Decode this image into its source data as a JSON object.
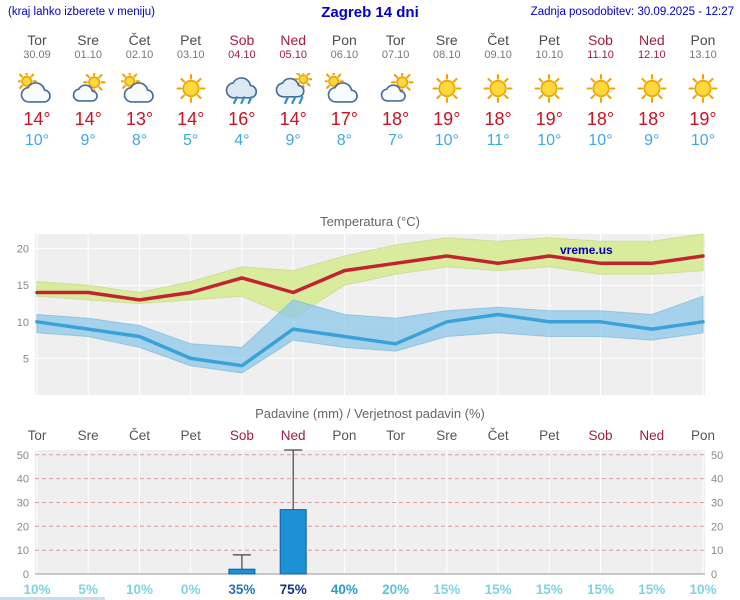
{
  "header": {
    "left_note": "(kraj lahko izberete v meniju)",
    "title": "Zagreb 14 dni",
    "updated": "Zadnja posodobitev: 30.09.2025 - 12:27"
  },
  "days": [
    {
      "name": "Tor",
      "date": "30.09",
      "weekend": false,
      "icon": "mostly-cloudy",
      "tmax_label": "14°",
      "tmin_label": "10°"
    },
    {
      "name": "Sre",
      "date": "01.10",
      "weekend": false,
      "icon": "partly",
      "tmax_label": "14°",
      "tmin_label": "9°"
    },
    {
      "name": "Čet",
      "date": "02.10",
      "weekend": false,
      "icon": "mostly-cloudy",
      "tmax_label": "13°",
      "tmin_label": "8°"
    },
    {
      "name": "Pet",
      "date": "03.10",
      "weekend": false,
      "icon": "sunny",
      "tmax_label": "14°",
      "tmin_label": "5°"
    },
    {
      "name": "Sob",
      "date": "04.10",
      "weekend": true,
      "icon": "rain",
      "tmax_label": "16°",
      "tmin_label": "4°"
    },
    {
      "name": "Ned",
      "date": "05.10",
      "weekend": true,
      "icon": "rain-sun",
      "tmax_label": "14°",
      "tmin_label": "9°"
    },
    {
      "name": "Pon",
      "date": "06.10",
      "weekend": false,
      "icon": "mostly-cloudy",
      "tmax_label": "17°",
      "tmin_label": "8°"
    },
    {
      "name": "Tor",
      "date": "07.10",
      "weekend": false,
      "icon": "partly",
      "tmax_label": "18°",
      "tmin_label": "7°"
    },
    {
      "name": "Sre",
      "date": "08.10",
      "weekend": false,
      "icon": "sunny",
      "tmax_label": "19°",
      "tmin_label": "10°"
    },
    {
      "name": "Čet",
      "date": "09.10",
      "weekend": false,
      "icon": "sunny",
      "tmax_label": "18°",
      "tmin_label": "11°"
    },
    {
      "name": "Pet",
      "date": "10.10",
      "weekend": false,
      "icon": "sunny",
      "tmax_label": "19°",
      "tmin_label": "10°"
    },
    {
      "name": "Sob",
      "date": "11.10",
      "weekend": true,
      "icon": "sunny",
      "tmax_label": "18°",
      "tmin_label": "10°"
    },
    {
      "name": "Ned",
      "date": "12.10",
      "weekend": true,
      "icon": "sunny",
      "tmax_label": "18°",
      "tmin_label": "9°"
    },
    {
      "name": "Pon",
      "date": "13.10",
      "weekend": false,
      "icon": "sunny",
      "tmax_label": "19°",
      "tmin_label": "10°"
    }
  ],
  "chart_data": [
    {
      "type": "line",
      "title": "Temperatura (°C)",
      "x_labels": [
        "Tor",
        "Sre",
        "Čet",
        "Pet",
        "Sob",
        "Ned",
        "Pon",
        "Tor",
        "Sre",
        "Čet",
        "Pet",
        "Sob",
        "Ned",
        "Pon"
      ],
      "ylim": [
        0,
        22
      ],
      "yticks": [
        5,
        10,
        15,
        20
      ],
      "grid": true,
      "watermark": "vreme.us",
      "series": [
        {
          "name": "tmax",
          "color": "#c32330",
          "values": [
            14,
            14,
            13,
            14,
            16,
            14,
            17,
            18,
            19,
            18,
            19,
            18,
            18,
            19
          ]
        },
        {
          "name": "tmin",
          "color": "#3aa2d9",
          "values": [
            10,
            9,
            8,
            5,
            4,
            9,
            8,
            7,
            10,
            11,
            10,
            10,
            9,
            10
          ]
        },
        {
          "name": "tmax_range_upper",
          "values": [
            15.5,
            15,
            14,
            15.5,
            17.5,
            17,
            19,
            20.5,
            21.5,
            21,
            21.5,
            21,
            21,
            22
          ]
        },
        {
          "name": "tmax_range_lower",
          "values": [
            13.5,
            13,
            12.5,
            13,
            13.5,
            10.5,
            15,
            16.5,
            17.5,
            17,
            17.5,
            16.5,
            16.5,
            17
          ]
        },
        {
          "name": "tmin_range_upper",
          "values": [
            11,
            10.5,
            9.5,
            7,
            6.5,
            13,
            11,
            10.5,
            11.5,
            12,
            11.5,
            11.5,
            11,
            13.5
          ]
        },
        {
          "name": "tmin_range_lower",
          "values": [
            8.5,
            8,
            6.5,
            4,
            3,
            7.5,
            6.5,
            6,
            8,
            8.5,
            8,
            8,
            7.5,
            8.5
          ]
        }
      ]
    },
    {
      "type": "bar",
      "title": "Padavine (mm) / Verjetnost padavin (%)",
      "categories": [
        "Tor",
        "Sre",
        "Čet",
        "Pet",
        "Sob",
        "Ned",
        "Pon",
        "Tor",
        "Sre",
        "Čet",
        "Pet",
        "Sob",
        "Ned",
        "Pon"
      ],
      "precip_mm": [
        0,
        0,
        0,
        0,
        2,
        27,
        0,
        0,
        0,
        0,
        0,
        0,
        0,
        0
      ],
      "precip_max_mm": [
        0,
        0,
        0,
        0,
        8,
        52,
        0,
        0,
        0,
        0,
        0,
        0,
        0,
        0
      ],
      "ylim": [
        0,
        52
      ],
      "yticks": [
        0,
        10,
        20,
        30,
        40,
        50
      ],
      "probabilities": [
        {
          "label": "10%",
          "color": "#7fd2e5"
        },
        {
          "label": "5%",
          "color": "#7fd2e5"
        },
        {
          "label": "10%",
          "color": "#7fd2e5"
        },
        {
          "label": "0%",
          "color": "#7fd2e5"
        },
        {
          "label": "35%",
          "color": "#2d72b8"
        },
        {
          "label": "75%",
          "color": "#0f3580"
        },
        {
          "label": "40%",
          "color": "#2d9ace"
        },
        {
          "label": "20%",
          "color": "#5cc0de"
        },
        {
          "label": "15%",
          "color": "#7fd2e5"
        },
        {
          "label": "15%",
          "color": "#7fd2e5"
        },
        {
          "label": "15%",
          "color": "#7fd2e5"
        },
        {
          "label": "15%",
          "color": "#7fd2e5"
        },
        {
          "label": "15%",
          "color": "#7fd2e5"
        },
        {
          "label": "10%",
          "color": "#7fd2e5"
        }
      ]
    }
  ],
  "colors": {
    "link_blue": "#0000cc",
    "brand_blue": "#0000bb",
    "weekend_red": "#a01d3f",
    "weekday_gray": "#4d4d4d",
    "tmax_red": "#cc1122",
    "tmin_blue": "#3fa9dd",
    "plot_bg": "#efefef",
    "tmax_band": "#d9ec9e",
    "tmin_band": "#8cc8e8",
    "precip_grid_red": "#e09999",
    "bar_blue": "#1e90d6",
    "bar_border": "#1060a0",
    "whisker": "#444444"
  }
}
